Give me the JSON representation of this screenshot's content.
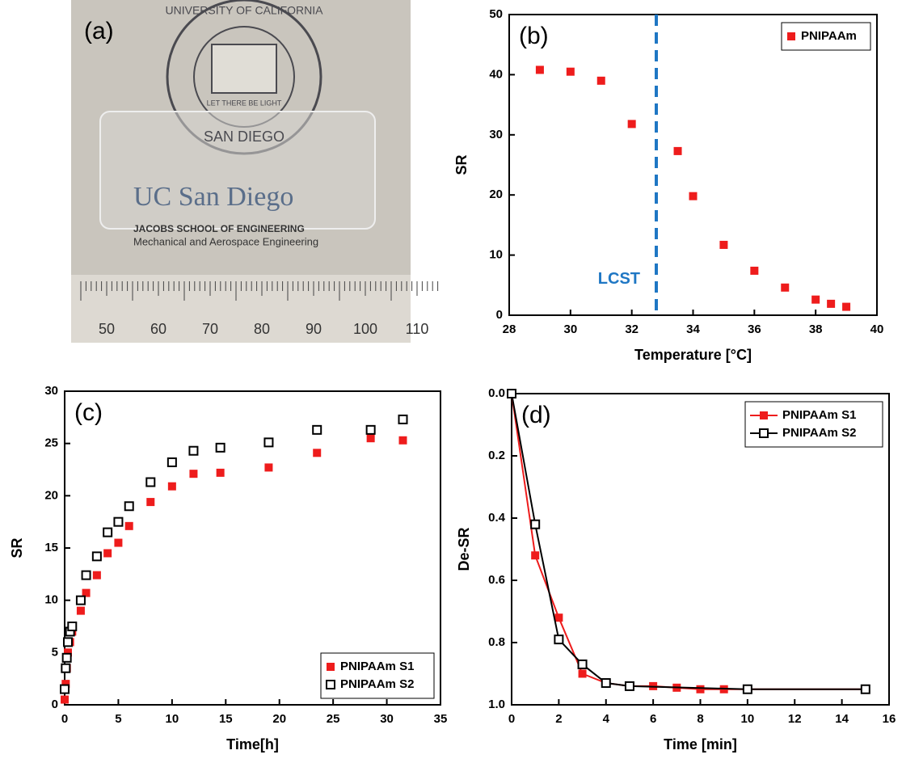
{
  "photo": {
    "label": "(a)",
    "seal_top": "UNIVERSITY OF CALIFORNIA",
    "seal_motto": "LET THERE BE LIGHT",
    "seal_bottom": "SAN DIEGO",
    "logo": "UC San Diego",
    "school": "JACOBS SCHOOL OF ENGINEERING",
    "department": "Mechanical and Aerospace Engineering",
    "ruler": [
      "50",
      "60",
      "70",
      "80",
      "90",
      "100",
      "110"
    ]
  },
  "chart_data": [
    {
      "type": "scatter",
      "label": "(b)",
      "xlabel": "Temperature [°C]",
      "ylabel": "SR",
      "xlim": [
        28,
        40
      ],
      "xticks": [
        28,
        30,
        32,
        34,
        36,
        38,
        40
      ],
      "ylim": [
        0,
        50
      ],
      "yticks": [
        0,
        10,
        20,
        30,
        40,
        50
      ],
      "legend": "upper right",
      "vline": {
        "x": 32.8,
        "label": "LCST",
        "color": "#1f77c4"
      },
      "series": [
        {
          "name": "PNIPAAm",
          "color": "#ee1c1c",
          "filled": true,
          "x": [
            29,
            30,
            31,
            32,
            33.5,
            34,
            35,
            36,
            37,
            38,
            38.5,
            39
          ],
          "values": [
            40.8,
            40.5,
            39,
            31.8,
            27.3,
            19.8,
            11.7,
            7.4,
            4.6,
            2.6,
            1.9,
            1.4
          ]
        }
      ]
    },
    {
      "type": "scatter",
      "label": "(c)",
      "xlabel": "Time[h]",
      "ylabel": "SR",
      "xlim": [
        0,
        35
      ],
      "xticks": [
        0,
        5,
        10,
        15,
        20,
        25,
        30,
        35
      ],
      "ylim": [
        0,
        30
      ],
      "yticks": [
        0,
        5,
        10,
        15,
        20,
        25,
        30
      ],
      "legend": "lower right",
      "series": [
        {
          "name": "PNIPAAm S1",
          "color": "#ee1c1c",
          "filled": true,
          "x": [
            0,
            0.1,
            0.2,
            0.3,
            0.5,
            0.7,
            1.5,
            2,
            3,
            4,
            5,
            6,
            8,
            10,
            12,
            14.5,
            19,
            23.5,
            28.5,
            31.5
          ],
          "values": [
            0.5,
            2,
            3.5,
            5,
            6,
            7,
            9,
            10.7,
            12.4,
            14.5,
            15.5,
            17.1,
            19.4,
            20.9,
            22.1,
            22.2,
            22.7,
            24.1,
            25.5,
            25.3
          ]
        },
        {
          "name": "PNIPAAm S2",
          "color": "#000000",
          "filled": false,
          "x": [
            0,
            0.1,
            0.2,
            0.3,
            0.5,
            0.7,
            1.5,
            2,
            3,
            4,
            5,
            6,
            8,
            10,
            12,
            14.5,
            19,
            23.5,
            28.5,
            31.5
          ],
          "values": [
            1.5,
            3.5,
            4.5,
            6,
            7,
            7.5,
            10,
            12.4,
            14.2,
            16.5,
            17.5,
            19,
            21.3,
            23.2,
            24.3,
            24.6,
            25.1,
            26.3,
            26.3,
            27.3
          ]
        }
      ]
    },
    {
      "type": "line",
      "label": "(d)",
      "xlabel": "Time [min]",
      "ylabel": "De-SR",
      "xlim": [
        0,
        16
      ],
      "xticks": [
        0,
        2,
        4,
        6,
        8,
        10,
        12,
        14,
        16
      ],
      "ylim": [
        0,
        1
      ],
      "y_inverted": true,
      "yticks": [
        {
          "value": 0,
          "label": "0.0"
        },
        0.2,
        0.4,
        0.6,
        0.8,
        {
          "value": 1,
          "label": "1.0"
        }
      ],
      "legend": "upper right",
      "series": [
        {
          "name": "PNIPAAm S1",
          "color": "#ee1c1c",
          "filled": true,
          "x": [
            0,
            1,
            2,
            3,
            4,
            5,
            6,
            7,
            8,
            9,
            15
          ],
          "values": [
            0,
            0.52,
            0.72,
            0.9,
            0.93,
            0.94,
            0.94,
            0.945,
            0.95,
            0.95,
            0.95
          ]
        },
        {
          "name": "PNIPAAm S2",
          "color": "#000000",
          "filled": false,
          "x": [
            0,
            1,
            2,
            3,
            4,
            5,
            10,
            15
          ],
          "values": [
            0,
            0.42,
            0.79,
            0.87,
            0.93,
            0.94,
            0.95,
            0.95
          ]
        }
      ]
    }
  ]
}
